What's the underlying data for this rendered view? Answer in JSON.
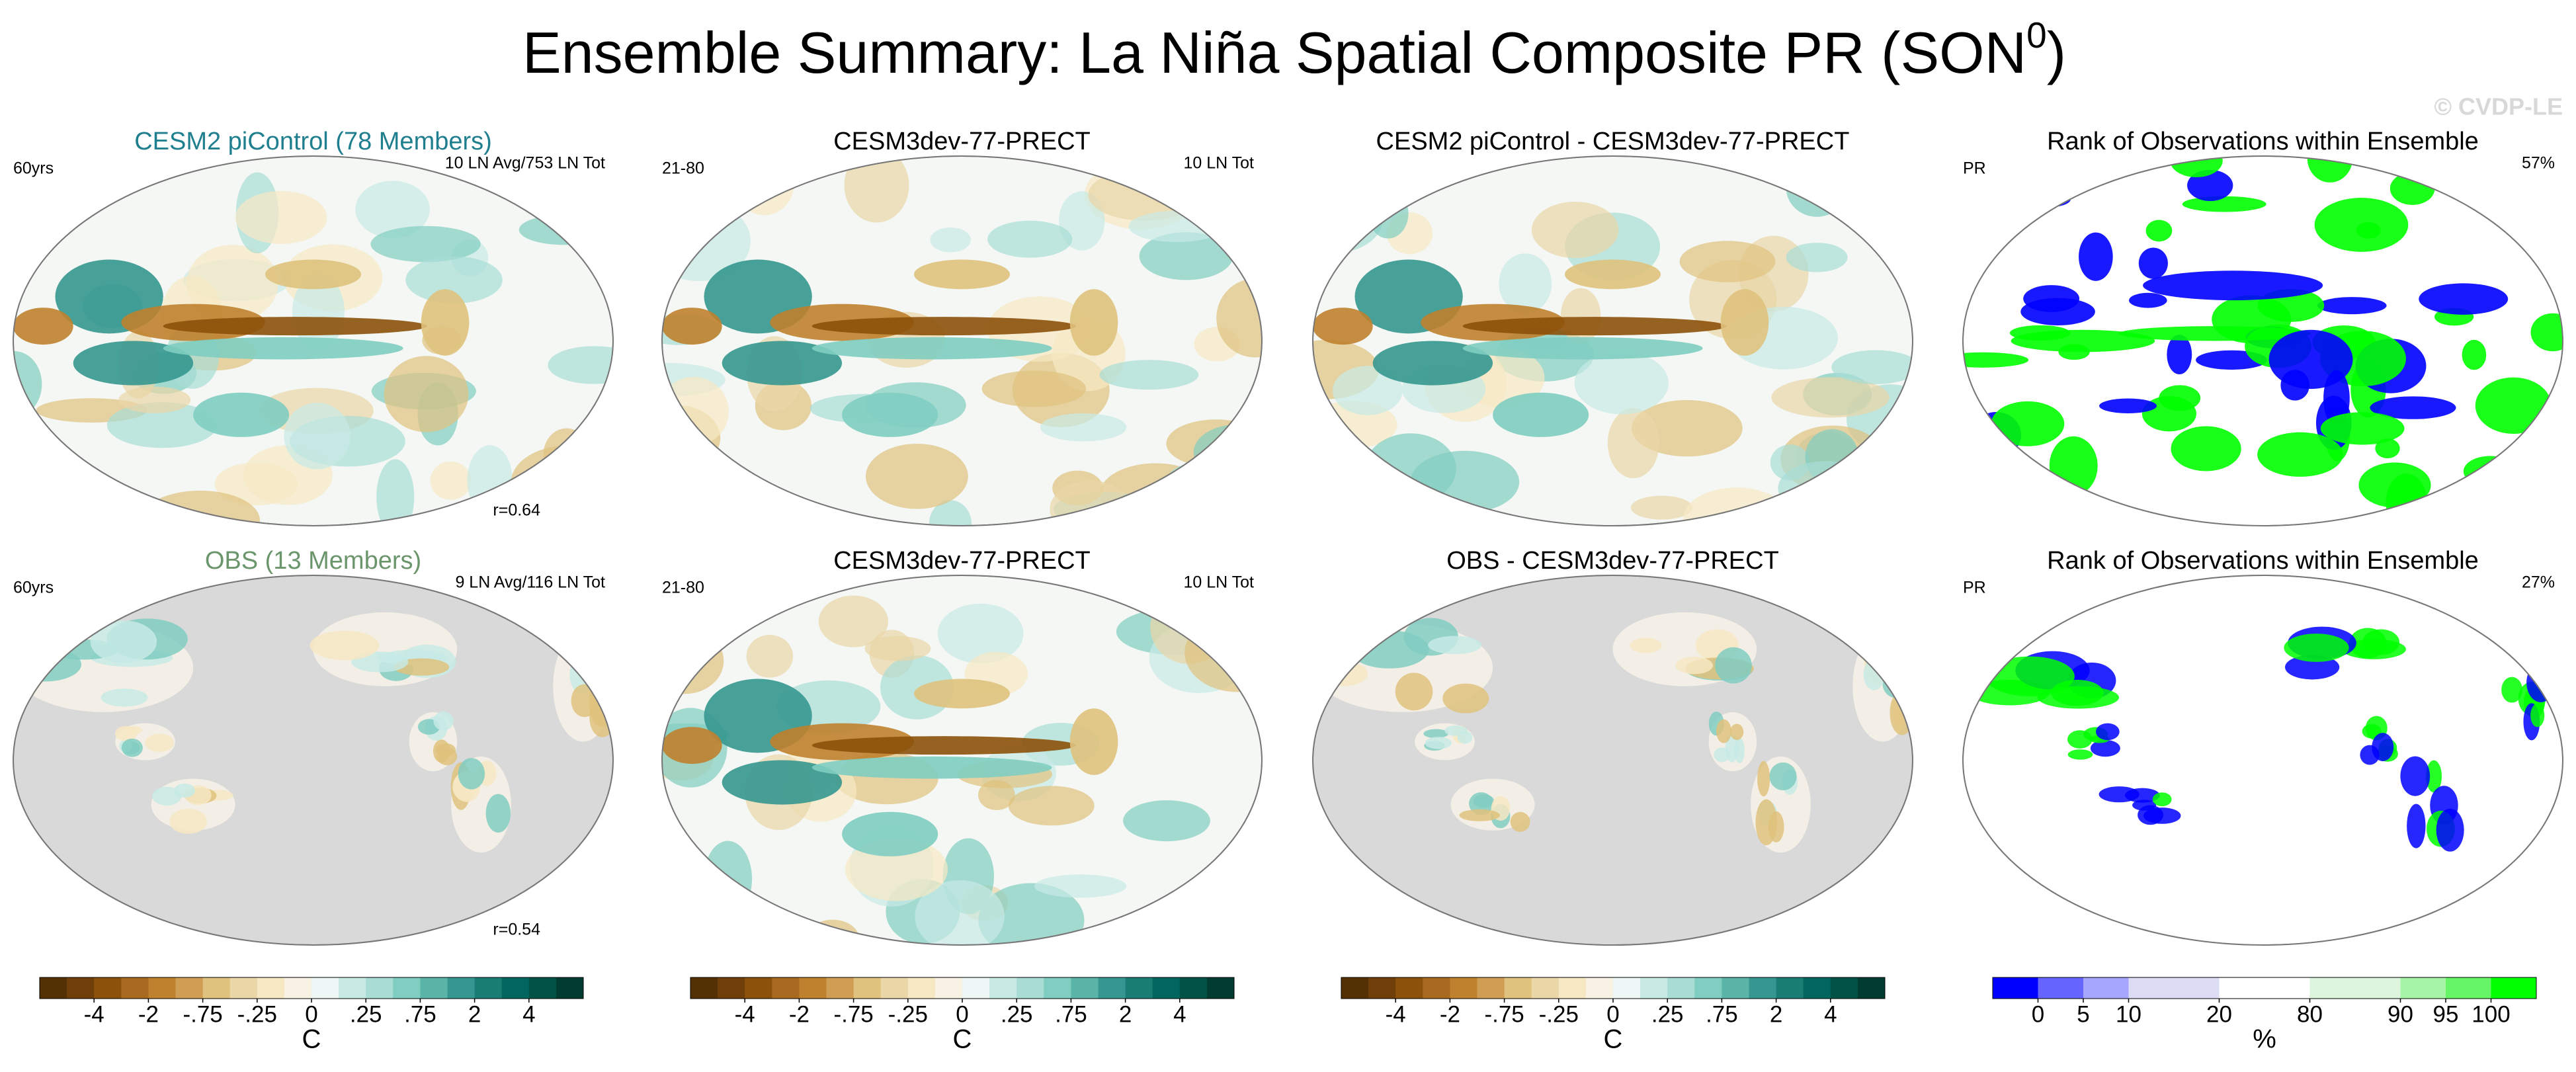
{
  "title": {
    "main": "Ensemble Summary: La Niña Spatial Composite PR (SON",
    "sup": "0",
    "end": ")"
  },
  "watermark": "© CVDP-LE",
  "panels": [
    {
      "title": "CESM2 piControl (78 Members)",
      "title_color": "#1f7f8f",
      "left": "60yrs",
      "right": "10 LN Avg/753 LN Tot",
      "corr": "r=0.64",
      "kind": "diverging"
    },
    {
      "title": "CESM3dev-77-PRECT",
      "title_color": "#000000",
      "left": "21-80",
      "right": "10 LN Tot",
      "kind": "diverging"
    },
    {
      "title": "CESM2 piControl - CESM3dev-77-PRECT",
      "title_color": "#000000",
      "kind": "diverging"
    },
    {
      "title": "Rank of Observations within Ensemble",
      "title_color": "#000000",
      "left": "PR",
      "right": "57%",
      "kind": "rank"
    },
    {
      "title": "OBS (13 Members)",
      "title_color": "#6b956b",
      "left": "60yrs",
      "right": "9 LN Avg/116 LN Tot",
      "corr": "r=0.54",
      "kind": "land"
    },
    {
      "title": "CESM3dev-77-PRECT",
      "title_color": "#000000",
      "left": "21-80",
      "right": "10 LN Tot",
      "kind": "diverging"
    },
    {
      "title": "OBS - CESM3dev-77-PRECT",
      "title_color": "#000000",
      "kind": "land"
    },
    {
      "title": "Rank of Observations within Ensemble",
      "title_color": "#000000",
      "left": "PR",
      "right": "27%",
      "kind": "rankland"
    }
  ],
  "colorbars": [
    {
      "unit": "C",
      "colors": [
        "#543005",
        "#6f3f0a",
        "#8c510a",
        "#a86a20",
        "#bf812d",
        "#cf9d53",
        "#dfc27d",
        "#ead6a7",
        "#f6e8c3",
        "#f8f2e4",
        "#eef7f5",
        "#c7eae5",
        "#a8ddd5",
        "#80cdc1",
        "#5ab4a8",
        "#35978f",
        "#1a7d73",
        "#01665e",
        "#035246",
        "#003c30"
      ],
      "ticks": [
        -4,
        -2,
        {
          "value": -0.75,
          "label": "-.75"
        },
        {
          "value": -0.25,
          "label": "-.25"
        },
        0,
        {
          "value": 0.25,
          "label": ".25"
        },
        {
          "value": 0.75,
          "label": ".75"
        },
        2,
        4
      ]
    },
    {
      "unit": "C",
      "colors": [
        "#543005",
        "#6f3f0a",
        "#8c510a",
        "#a86a20",
        "#bf812d",
        "#cf9d53",
        "#dfc27d",
        "#ead6a7",
        "#f6e8c3",
        "#f8f2e4",
        "#eef7f5",
        "#c7eae5",
        "#a8ddd5",
        "#80cdc1",
        "#5ab4a8",
        "#35978f",
        "#1a7d73",
        "#01665e",
        "#035246",
        "#003c30"
      ],
      "ticks": [
        -4,
        -2,
        {
          "value": -0.75,
          "label": "-.75"
        },
        {
          "value": -0.25,
          "label": "-.25"
        },
        0,
        {
          "value": 0.25,
          "label": ".25"
        },
        {
          "value": 0.75,
          "label": ".75"
        },
        2,
        4
      ]
    },
    {
      "unit": "C",
      "colors": [
        "#543005",
        "#6f3f0a",
        "#8c510a",
        "#a86a20",
        "#bf812d",
        "#cf9d53",
        "#dfc27d",
        "#ead6a7",
        "#f6e8c3",
        "#f8f2e4",
        "#eef7f5",
        "#c7eae5",
        "#a8ddd5",
        "#80cdc1",
        "#5ab4a8",
        "#35978f",
        "#1a7d73",
        "#01665e",
        "#035246",
        "#003c30"
      ],
      "ticks": [
        -4,
        -2,
        {
          "value": -0.75,
          "label": "-.75"
        },
        {
          "value": -0.25,
          "label": "-.25"
        },
        0,
        {
          "value": 0.25,
          "label": ".25"
        },
        {
          "value": 0.75,
          "label": ".75"
        },
        2,
        4
      ]
    },
    {
      "unit": "%",
      "colors": [
        "#0000ff",
        "#6666ff",
        "#a6a6ff",
        "#dcdcf5",
        "#ffffff",
        "#dcf5dc",
        "#a6f5a6",
        "#66f566",
        "#00ff00"
      ],
      "ticks": [
        0,
        5,
        10,
        20,
        80,
        90,
        95,
        100
      ]
    }
  ]
}
